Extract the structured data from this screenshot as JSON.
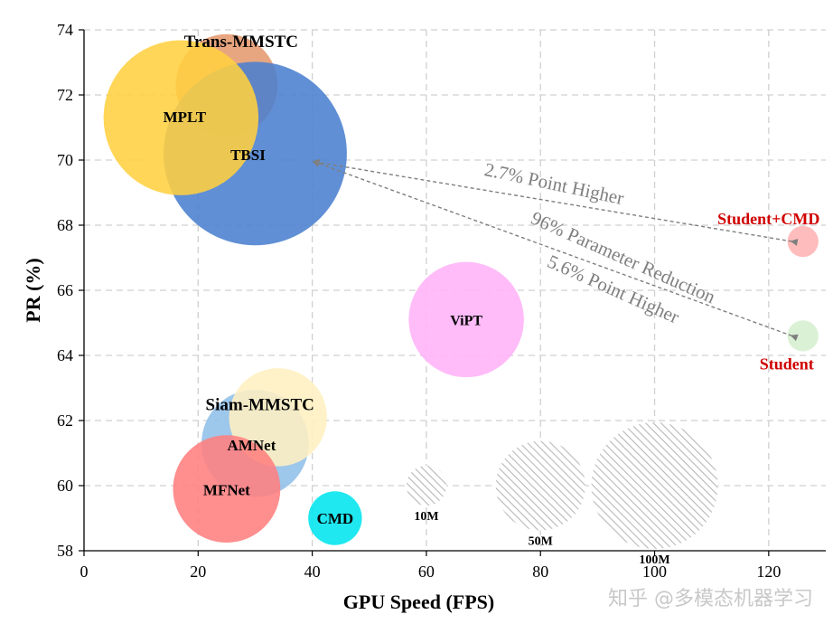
{
  "chart_data": {
    "type": "scatter",
    "xlabel": "GPU Speed (FPS)",
    "ylabel": "PR (%)",
    "xlim": [
      0,
      130
    ],
    "ylim": [
      58,
      74
    ],
    "xticks": [
      0,
      20,
      40,
      60,
      80,
      100,
      120
    ],
    "yticks": [
      58,
      60,
      62,
      64,
      66,
      68,
      70,
      72,
      74
    ],
    "grid": true,
    "series": [
      {
        "name": "Trans-MMSTC",
        "x": 25,
        "y": 72.3,
        "params_m": 65,
        "color": "#e59a6e"
      },
      {
        "name": "TBSI",
        "x": 30,
        "y": 70.2,
        "params_m": 210,
        "color": "#4a7fcf"
      },
      {
        "name": "MPLT",
        "x": 17,
        "y": 71.3,
        "params_m": 150,
        "color": "#ffd040"
      },
      {
        "name": "ViPT",
        "x": 67,
        "y": 65.1,
        "params_m": 83,
        "color": "#ffb3f8"
      },
      {
        "name": "AMNet",
        "x": 30,
        "y": 61.3,
        "params_m": 72,
        "color": "#8fbfe8"
      },
      {
        "name": "Siam-MMSTC",
        "x": 34,
        "y": 62.1,
        "params_m": 60,
        "color": "#fff0c2"
      },
      {
        "name": "MFNet",
        "x": 25,
        "y": 59.9,
        "params_m": 72,
        "color": "#ff7f7f"
      },
      {
        "name": "CMD",
        "x": 44,
        "y": 59.0,
        "params_m": 18,
        "color": "#00e5ee"
      },
      {
        "name": "Student+CMD",
        "x": 126,
        "y": 67.5,
        "params_m": 6,
        "color": "#ffb3b3"
      },
      {
        "name": "Student",
        "x": 126,
        "y": 64.6,
        "params_m": 6,
        "color": "#d6efcf"
      }
    ],
    "size_legend": [
      {
        "label": "10M",
        "x": 60,
        "y": 60,
        "params_m": 10
      },
      {
        "label": "50M",
        "x": 80,
        "y": 60,
        "params_m": 50
      },
      {
        "label": "100M",
        "x": 100,
        "y": 60,
        "params_m": 100
      }
    ],
    "annotations": [
      {
        "text": "2.7% Point Higher"
      },
      {
        "text": "96% Parameter Reduction"
      },
      {
        "text": "5.6% Point Higher"
      }
    ]
  },
  "watermark": "知乎 @多模态机器学习"
}
